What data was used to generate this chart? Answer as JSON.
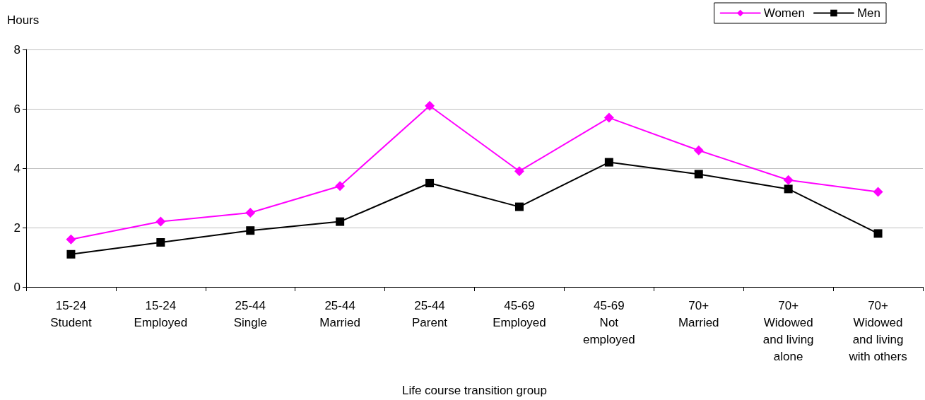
{
  "chart_data": {
    "type": "line",
    "ylabel": "Hours",
    "xlabel": "Life course transition group",
    "categories": [
      "15-24\nStudent",
      "15-24\nEmployed",
      "25-44\nSingle",
      "25-44\nMarried",
      "25-44\nParent",
      "45-69\nEmployed",
      "45-69\nNot\nemployed",
      "70+\nMarried",
      "70+\nWidowed\nand living\nalone",
      "70+\nWidowed\nand living\nwith others"
    ],
    "series": [
      {
        "name": "Women",
        "color": "#ff00ff",
        "marker": "diamond",
        "values": [
          1.6,
          2.2,
          2.5,
          3.4,
          6.1,
          3.9,
          5.7,
          4.6,
          3.6,
          3.2
        ]
      },
      {
        "name": "Men",
        "color": "#000000",
        "marker": "square",
        "values": [
          1.1,
          1.5,
          1.9,
          2.2,
          3.5,
          2.7,
          4.2,
          3.8,
          3.3,
          1.8
        ]
      }
    ],
    "ylim": [
      0,
      8
    ],
    "yticks": [
      0,
      2,
      4,
      6,
      8
    ],
    "grid": "y",
    "legend": "top right",
    "line_style": "solid"
  }
}
